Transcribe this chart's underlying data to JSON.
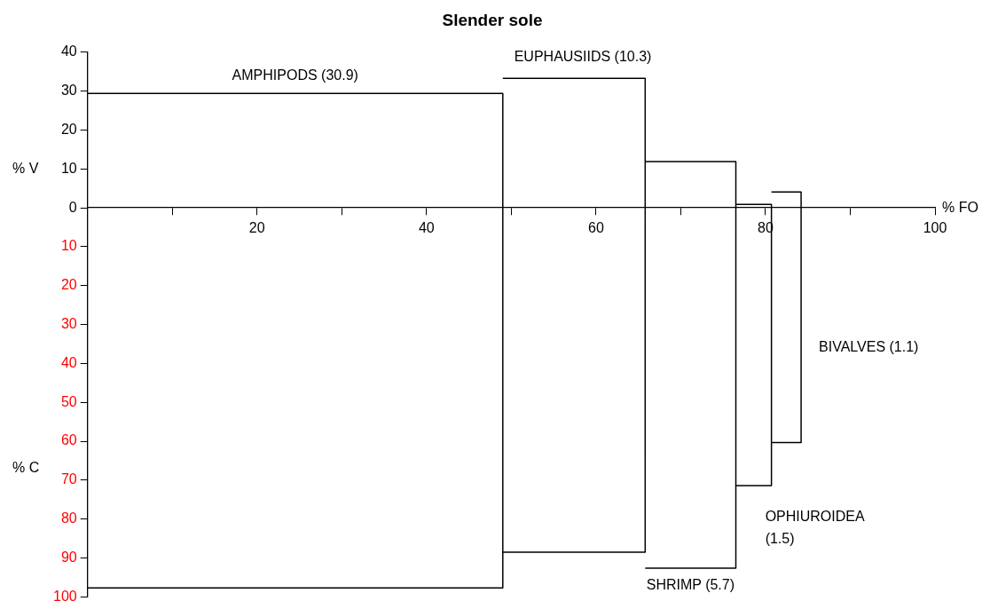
{
  "chart_data": {
    "type": "line",
    "title": "Slender sole",
    "xlabel": "% FO",
    "ylabel": "% V",
    "y2label": "% C",
    "xlim": [
      0,
      100
    ],
    "xticks": [
      {
        "value": 10,
        "label": null
      },
      20,
      {
        "value": 30,
        "label": null
      },
      40,
      {
        "value": 50,
        "label": null
      },
      60,
      {
        "value": 70,
        "label": null
      },
      80,
      {
        "value": 90,
        "label": null
      },
      100
    ],
    "ylim": [
      -100,
      40
    ],
    "yticks": [
      40,
      30,
      20,
      10,
      0,
      {
        "value": -10,
        "label": "10"
      },
      {
        "value": -20,
        "label": "20"
      },
      {
        "value": -30,
        "label": "30"
      },
      {
        "value": -40,
        "label": "40"
      },
      {
        "value": -50,
        "label": "50"
      },
      {
        "value": -60,
        "label": "60"
      },
      {
        "value": -70,
        "label": "70"
      },
      {
        "value": -80,
        "label": "80"
      },
      {
        "value": -90,
        "label": "90"
      },
      {
        "value": -100,
        "label": "100"
      }
    ],
    "grid": false,
    "legend": false,
    "marker": "none",
    "line_style": "solid",
    "series": [
      {
        "color": "#000000",
        "x": [
          0,
          49.0,
          49.0,
          0
        ],
        "values": [
          29.4,
          29.4,
          -97.7,
          -97.7
        ]
      },
      {
        "color": "#000000",
        "x": [
          49.0,
          65.8,
          65.8,
          49.0
        ],
        "values": [
          33.3,
          33.3,
          -88.5,
          -88.5
        ]
      },
      {
        "color": "#000000",
        "x": [
          65.8,
          76.5,
          76.5,
          65.8
        ],
        "values": [
          11.9,
          11.9,
          -92.6,
          -92.6
        ]
      },
      {
        "color": "#000000",
        "x": [
          76.5,
          80.7,
          80.7,
          76.5
        ],
        "values": [
          0.9,
          0.9,
          -71.4,
          -71.4
        ]
      },
      {
        "color": "#000000",
        "x": [
          80.7,
          84.2,
          84.2,
          80.7
        ],
        "values": [
          4.1,
          4.1,
          -60.3,
          -60.3
        ]
      }
    ],
    "annotations": [
      "AMPHIPODS (30.9)",
      "EUPHAUSIIDS (10.3)",
      "SHRIMP (5.7)",
      "OPHIUROIDEA\n(1.5)",
      "BIVALVES (1.1)"
    ]
  }
}
